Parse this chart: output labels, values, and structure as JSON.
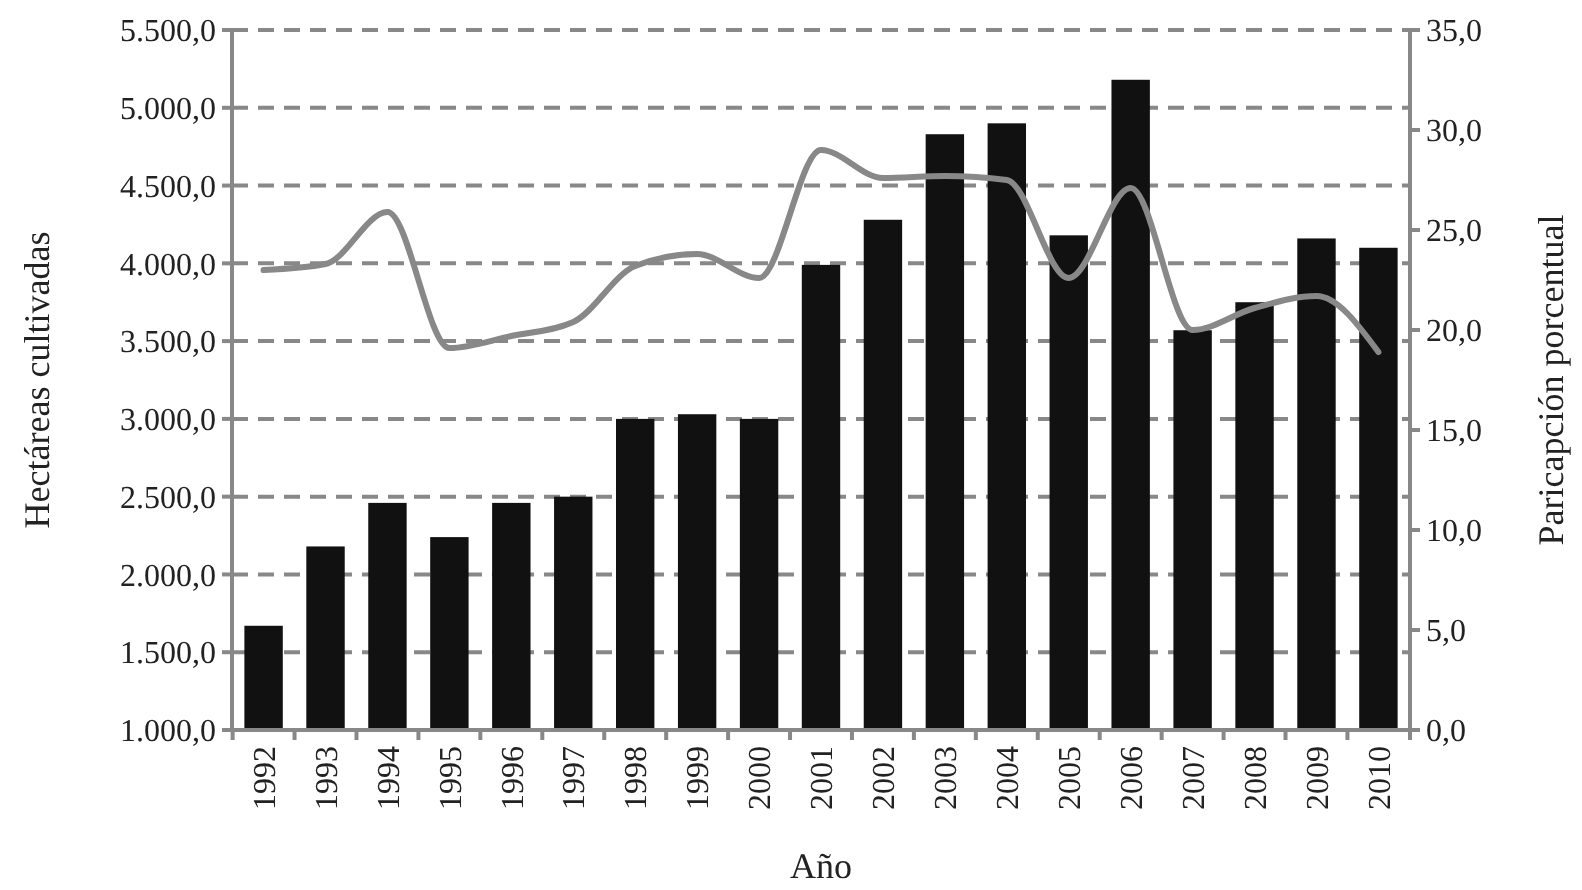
{
  "chart_data": {
    "type": "bar",
    "xlabel": "Año",
    "ylabel": "Hectáreas cultivadas",
    "y2label": "Paricapción porcentual",
    "categories": [
      "1992",
      "1993",
      "1994",
      "1995",
      "1996",
      "1997",
      "1998",
      "1999",
      "2000",
      "2001",
      "2002",
      "2003",
      "2004",
      "2005",
      "2006",
      "2007",
      "2008",
      "2009",
      "2010"
    ],
    "series": [
      {
        "color": "#111111",
        "values": [
          1670,
          2180,
          2460,
          2240,
          2460,
          2500,
          3000,
          3030,
          3000,
          3990,
          4280,
          4830,
          4900,
          4180,
          5180,
          3570,
          3750,
          4160,
          4100
        ]
      },
      {
        "type": "line",
        "axis": "y2",
        "color": "#888888",
        "values": [
          23.0,
          23.3,
          25.9,
          19.1,
          19.7,
          20.4,
          23.2,
          23.8,
          22.6,
          29.0,
          27.6,
          27.7,
          27.5,
          22.6,
          27.1,
          20.0,
          21.1,
          21.7,
          18.9
        ]
      }
    ],
    "ylim": [
      1000,
      5500
    ],
    "yticks": [
      {
        "value": 1000,
        "label": "1.000,0"
      },
      {
        "value": 1500,
        "label": "1.500,0"
      },
      {
        "value": 2000,
        "label": "2.000,0"
      },
      {
        "value": 2500,
        "label": "2.500,0"
      },
      {
        "value": 3000,
        "label": "3.000,0"
      },
      {
        "value": 3500,
        "label": "3.500,0"
      },
      {
        "value": 4000,
        "label": "4.000,0"
      },
      {
        "value": 4500,
        "label": "4.500,0"
      },
      {
        "value": 5000,
        "label": "5.000,0"
      },
      {
        "value": 5500,
        "label": "5.500,0"
      }
    ],
    "y2lim": [
      0,
      35
    ],
    "y2ticks": [
      {
        "value": 0,
        "label": "0,0"
      },
      {
        "value": 5,
        "label": "5,0"
      },
      {
        "value": 10,
        "label": "10,0"
      },
      {
        "value": 15,
        "label": "15,0"
      },
      {
        "value": 20,
        "label": "20,0"
      },
      {
        "value": 25,
        "label": "25,0"
      },
      {
        "value": 30,
        "label": "30,0"
      },
      {
        "value": 35,
        "label": "35,0"
      }
    ],
    "grid": "y",
    "marker": "none",
    "line_style": "solid"
  }
}
